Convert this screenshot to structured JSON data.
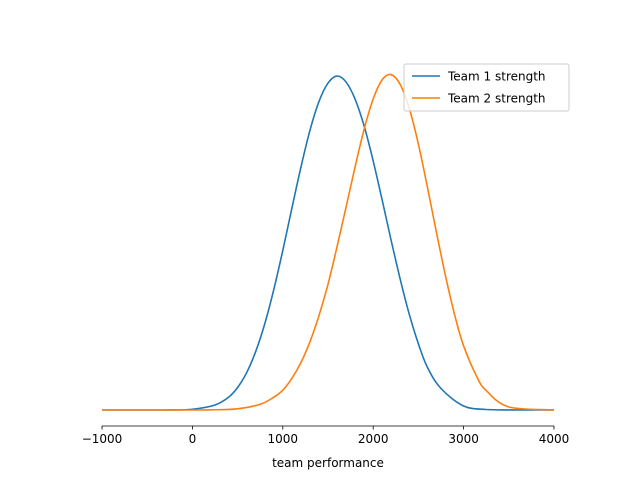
{
  "chart_data": {
    "type": "line",
    "title": "",
    "xlabel": "team performance",
    "ylabel": "",
    "xlim": [
      -1000,
      4000
    ],
    "ylim": [
      0,
      1
    ],
    "x_ticks": [
      -1000,
      0,
      1000,
      2000,
      3000,
      4000
    ],
    "x_tick_labels": [
      "−1000",
      "0",
      "1000",
      "2000",
      "3000",
      "4000"
    ],
    "y_axis_visible": false,
    "grid": false,
    "legend_position": "top-right",
    "series": [
      {
        "name": "Team 1 strength",
        "color": "#1f77b4",
        "x": [
          -1000,
          -500,
          -250,
          0,
          250,
          400,
          500,
          600,
          700,
          800,
          900,
          1000,
          1100,
          1200,
          1300,
          1400,
          1500,
          1600,
          1700,
          1800,
          1900,
          2000,
          2100,
          2200,
          2300,
          2400,
          2500,
          2600,
          2750,
          3000,
          3250,
          3500,
          4000
        ],
        "y": [
          0,
          0,
          0.0001,
          0.0022,
          0.015,
          0.038,
          0.067,
          0.111,
          0.174,
          0.256,
          0.358,
          0.475,
          0.6,
          0.722,
          0.832,
          0.918,
          0.973,
          0.994,
          0.976,
          0.925,
          0.845,
          0.741,
          0.624,
          0.503,
          0.388,
          0.284,
          0.197,
          0.127,
          0.064,
          0.012,
          0.0015,
          0.0001,
          0
        ]
      },
      {
        "name": "Team 2 strength",
        "color": "#ff7f0e",
        "x": [
          -1000,
          0,
          250,
          500,
          750,
          900,
          1000,
          1100,
          1200,
          1300,
          1400,
          1500,
          1600,
          1700,
          1800,
          1900,
          2000,
          2100,
          2200,
          2300,
          2400,
          2500,
          2600,
          2700,
          2800,
          2900,
          3000,
          3150,
          3250,
          3500,
          4000
        ],
        "y": [
          0,
          0,
          0.0007,
          0.0036,
          0.017,
          0.038,
          0.059,
          0.094,
          0.141,
          0.203,
          0.281,
          0.374,
          0.486,
          0.604,
          0.724,
          0.836,
          0.926,
          0.983,
          0.998,
          0.968,
          0.897,
          0.791,
          0.663,
          0.528,
          0.399,
          0.284,
          0.191,
          0.097,
          0.058,
          0.009,
          0
        ]
      }
    ]
  }
}
